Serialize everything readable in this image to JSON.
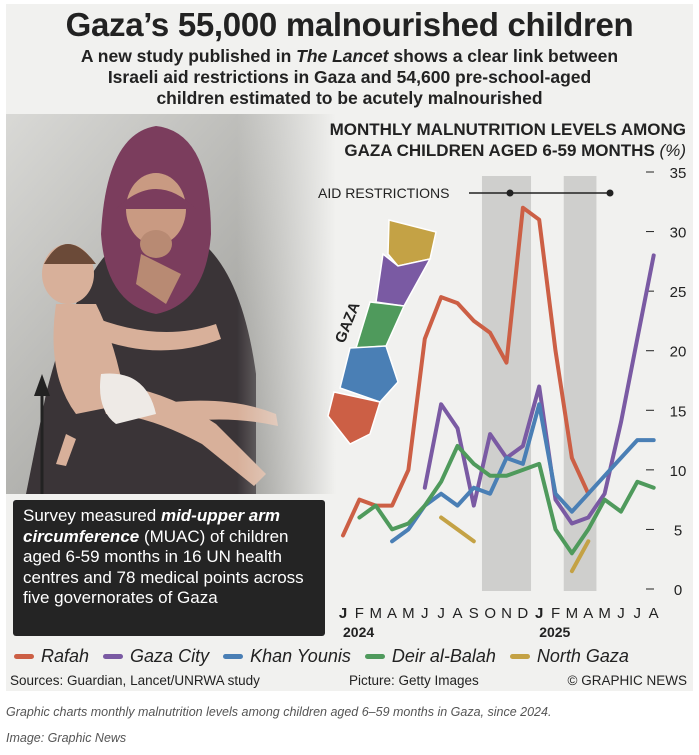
{
  "header": {
    "title": "Gaza’s 55,000 malnourished children",
    "subtitle_line1_a": "A new study published in ",
    "subtitle_line1_em": "The Lancet",
    "subtitle_line1_b": " shows a clear link between",
    "subtitle_line2": "Israeli aid restrictions in Gaza and 54,600 pre-school-aged",
    "subtitle_line3": "children estimated to be acutely malnourished"
  },
  "infobox": {
    "text_a": "Survey measured ",
    "text_bold": "mid-upper arm circumference",
    "text_b": " (MUAC) of children aged 6-59 months in 16 UN health centres and 78 medical points across five governorates of Gaza"
  },
  "map": {
    "label": "GAZA"
  },
  "chart_data": {
    "type": "line",
    "title_line1": "MONTHLY MALNUTRITION LEVELS AMONG",
    "title_line2": "GAZA CHILDREN AGED 6-59 MONTHS",
    "unit": "(%)",
    "x": [
      "Jan 2024",
      "Feb 2024",
      "Mar 2024",
      "Apr 2024",
      "May 2024",
      "Jun 2024",
      "Jul 2024",
      "Aug 2024",
      "Sep 2024",
      "Oct 2024",
      "Nov 2024",
      "Dec 2024",
      "Jan 2025",
      "Feb 2025",
      "Mar 2025",
      "Apr 2025",
      "May 2025",
      "Jun 2025",
      "Jul 2025",
      "Aug 2025"
    ],
    "tick_labels": [
      "J",
      "F",
      "M",
      "A",
      "M",
      "J",
      "J",
      "A",
      "S",
      "O",
      "N",
      "D",
      "J",
      "F",
      "M",
      "A",
      "M",
      "J",
      "J",
      "A"
    ],
    "year_labels": [
      "2024",
      "2025"
    ],
    "ylim": [
      0,
      35
    ],
    "yticks": [
      0,
      5,
      10,
      15,
      20,
      25,
      30,
      35
    ],
    "annotation": "AID RESTRICTIONS",
    "shaded_periods": [
      [
        "Oct 2024",
        "Dec 2024"
      ],
      [
        "Mar 2025",
        "Apr 2025"
      ]
    ],
    "series": [
      {
        "name": "Rafah",
        "color": "#cc5f45",
        "values": [
          4.5,
          7.5,
          7,
          7,
          10,
          21,
          24.5,
          24,
          22.5,
          21.5,
          19,
          32,
          31,
          20,
          11,
          8,
          null,
          null,
          null,
          null
        ]
      },
      {
        "name": "Gaza City",
        "color": "#7a5aa3",
        "values": [
          null,
          null,
          null,
          null,
          null,
          8.5,
          15.5,
          13.5,
          7,
          13,
          11,
          12,
          17,
          7.5,
          5.5,
          6,
          8,
          14,
          21,
          28
        ]
      },
      {
        "name": "Khan Younis",
        "color": "#4a7fb5",
        "values": [
          null,
          null,
          null,
          4,
          5,
          7,
          8,
          7,
          8.5,
          8,
          11,
          10.5,
          15.5,
          8,
          6.5,
          8,
          9.5,
          11,
          12.5,
          12.5
        ]
      },
      {
        "name": "Deir al-Balah",
        "color": "#4f9a5c",
        "values": [
          null,
          6,
          7,
          5,
          5.5,
          7,
          9,
          12,
          10.5,
          9.5,
          9.5,
          10,
          10.5,
          5,
          3,
          5,
          7.5,
          6.5,
          9,
          8.5
        ]
      },
      {
        "name": "North Gaza",
        "color": "#c4a245",
        "values": [
          null,
          null,
          null,
          null,
          null,
          null,
          6,
          5,
          4,
          null,
          null,
          null,
          null,
          null,
          1.5,
          4,
          null,
          null,
          null,
          null
        ]
      }
    ]
  },
  "footer": {
    "sources": "Sources: Guardian, Lancet/UNRWA study",
    "picture": "Picture: Getty Images",
    "copyright": "© GRAPHIC NEWS"
  },
  "caption": "Graphic charts monthly malnutrition levels among children aged 6–59 months in Gaza, since 2024.",
  "credit": "Image: Graphic News"
}
